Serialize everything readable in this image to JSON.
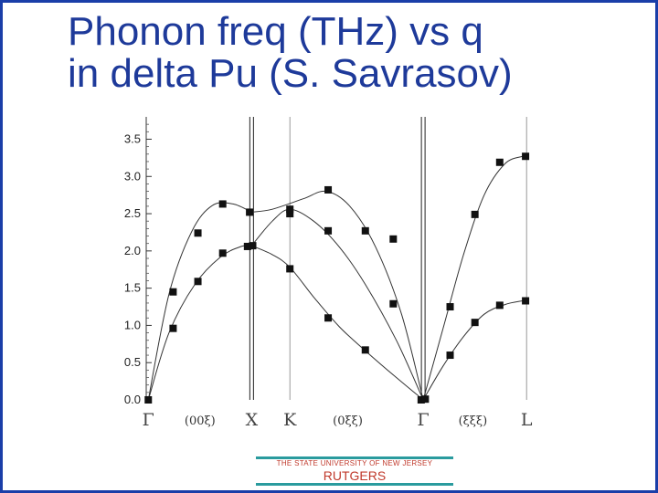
{
  "title": {
    "line1": "Phonon freq (THz) vs q",
    "line2": "in delta Pu (S. Savrasov)"
  },
  "footer": {
    "university": "THE STATE UNIVERSITY OF NEW JERSEY",
    "name": "RUTGERS"
  },
  "colors": {
    "title": "#1e3a9a",
    "frame": "#1a3ea8",
    "footer_line": "#2a9b9e",
    "footer_text": "#c0392b"
  },
  "chart_data": {
    "type": "scatter",
    "ylim": [
      0,
      3.8
    ],
    "yticks": [
      "0.0",
      "0.5",
      "1.0",
      "1.5",
      "2.0",
      "2.5",
      "3.0",
      "3.5"
    ],
    "x_symmetry_points": [
      {
        "label": "Γ",
        "pos": 0.0
      },
      {
        "label": "X",
        "pos": 1.0
      },
      {
        "label": "K",
        "pos": 1.37
      },
      {
        "label": "Γ",
        "pos": 2.66
      },
      {
        "label": "L",
        "pos": 3.66
      }
    ],
    "x_direction_labels": [
      {
        "label": "(00ξ)",
        "pos": 0.5
      },
      {
        "label": "(0ξξ)",
        "pos": 1.93
      },
      {
        "label": "(ξξξ)",
        "pos": 3.14
      }
    ],
    "xlim": [
      -0.02,
      3.72
    ],
    "grid": false,
    "series": [
      {
        "values": [
          [
            0.0,
            0.0
          ],
          [
            0.24,
            1.45
          ],
          [
            0.48,
            2.24
          ],
          [
            0.72,
            2.63
          ],
          [
            0.98,
            2.52
          ],
          [
            1.37,
            2.5
          ],
          [
            1.74,
            2.82
          ],
          [
            2.1,
            2.27
          ],
          [
            2.37,
            2.16
          ]
        ]
      },
      {
        "values": [
          [
            0.24,
            0.96
          ],
          [
            0.48,
            1.59
          ],
          [
            0.72,
            1.97
          ],
          [
            0.96,
            2.06
          ],
          [
            1.01,
            2.07
          ],
          [
            1.37,
            2.56
          ],
          [
            1.74,
            2.27
          ],
          [
            2.37,
            1.29
          ]
        ]
      },
      {
        "values": [
          [
            1.37,
            1.76
          ],
          [
            1.74,
            1.1
          ],
          [
            2.1,
            0.67
          ],
          [
            2.64,
            0.0
          ],
          [
            2.68,
            0.01
          ]
        ]
      },
      {
        "values": [
          [
            2.92,
            1.25
          ],
          [
            3.16,
            2.49
          ],
          [
            3.4,
            3.19
          ],
          [
            3.65,
            3.27
          ]
        ]
      },
      {
        "values": [
          [
            2.92,
            0.6
          ],
          [
            3.16,
            1.04
          ],
          [
            3.4,
            1.27
          ],
          [
            3.65,
            1.33
          ]
        ]
      }
    ],
    "curves": [
      {
        "values": [
          [
            0.0,
            0.0
          ],
          [
            0.2,
            1.42
          ],
          [
            0.42,
            2.26
          ],
          [
            0.62,
            2.61
          ],
          [
            0.82,
            2.63
          ],
          [
            1.0,
            2.52
          ]
        ]
      },
      {
        "values": [
          [
            0.0,
            0.0
          ],
          [
            0.2,
            0.9
          ],
          [
            0.45,
            1.55
          ],
          [
            0.7,
            1.92
          ],
          [
            0.9,
            2.06
          ],
          [
            1.0,
            2.07
          ]
        ]
      },
      {
        "values": [
          [
            1.0,
            2.52
          ],
          [
            1.2,
            2.56
          ],
          [
            1.5,
            2.7
          ],
          [
            1.72,
            2.8
          ],
          [
            1.95,
            2.6
          ],
          [
            2.2,
            2.05
          ],
          [
            2.45,
            1.15
          ],
          [
            2.66,
            0.0
          ]
        ]
      },
      {
        "values": [
          [
            1.0,
            2.07
          ],
          [
            1.2,
            2.4
          ],
          [
            1.37,
            2.56
          ],
          [
            1.6,
            2.4
          ],
          [
            1.85,
            2.05
          ],
          [
            2.1,
            1.55
          ],
          [
            2.4,
            0.8
          ],
          [
            2.66,
            0.0
          ]
        ]
      },
      {
        "values": [
          [
            1.0,
            2.07
          ],
          [
            1.2,
            1.95
          ],
          [
            1.37,
            1.78
          ],
          [
            1.6,
            1.38
          ],
          [
            1.85,
            0.98
          ],
          [
            2.1,
            0.66
          ],
          [
            2.4,
            0.3
          ],
          [
            2.66,
            0.0
          ]
        ]
      },
      {
        "values": [
          [
            2.66,
            0.0
          ],
          [
            2.85,
            0.95
          ],
          [
            3.05,
            1.95
          ],
          [
            3.25,
            2.75
          ],
          [
            3.45,
            3.17
          ],
          [
            3.62,
            3.27
          ]
        ]
      },
      {
        "values": [
          [
            2.66,
            0.0
          ],
          [
            2.85,
            0.45
          ],
          [
            3.05,
            0.85
          ],
          [
            3.25,
            1.15
          ],
          [
            3.45,
            1.28
          ],
          [
            3.62,
            1.33
          ]
        ]
      }
    ]
  }
}
